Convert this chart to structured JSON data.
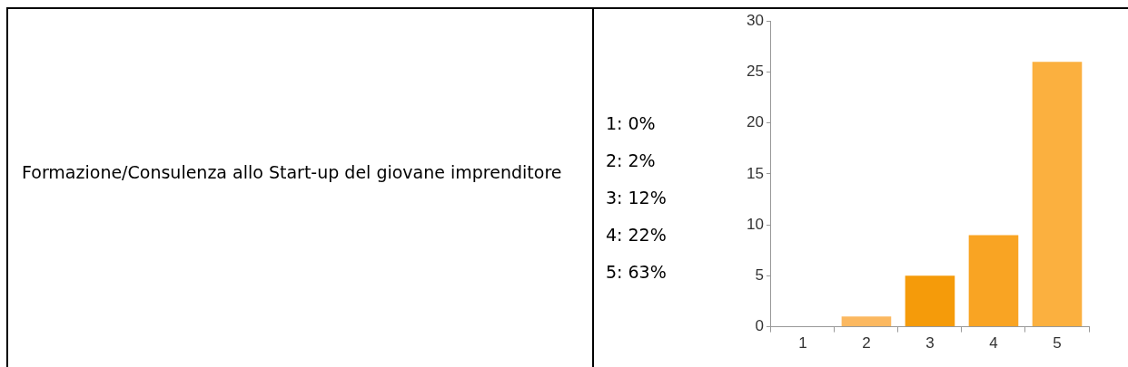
{
  "chart_data": {
    "type": "bar",
    "title": "Formazione/Consulenza allo Start-up del giovane imprenditore",
    "annotations": [
      "1: 0%",
      "2: 2%",
      "3: 12%",
      "4: 22%",
      "5: 63%"
    ],
    "categories": [
      "1",
      "2",
      "3",
      "4",
      "5"
    ],
    "values": [
      0,
      1,
      5,
      9,
      26
    ],
    "colors": [
      "#fbb860",
      "#fbb860",
      "#f59b0a",
      "#f9a423",
      "#fbb03f"
    ],
    "ylim": [
      0,
      30
    ],
    "yticks": [
      0,
      5,
      10,
      15,
      20,
      25,
      30
    ],
    "grid": false,
    "legend": false
  }
}
